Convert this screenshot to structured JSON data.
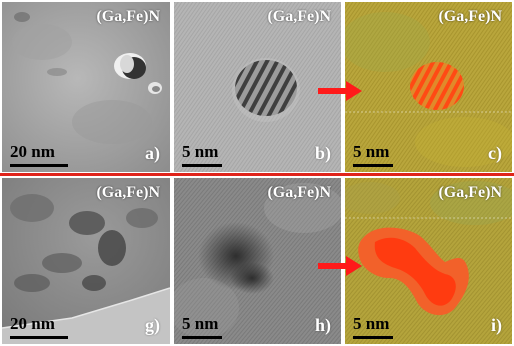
{
  "material_label": "(Ga,Fe)N",
  "panels": {
    "a": {
      "letter": "a)",
      "scale": "20 nm"
    },
    "b": {
      "letter": "b)",
      "scale": "5 nm"
    },
    "c": {
      "letter": "c)",
      "scale": "5 nm"
    },
    "g": {
      "letter": "g)",
      "scale": "20 nm"
    },
    "h": {
      "letter": "h)",
      "scale": "5 nm"
    },
    "i": {
      "letter": "i)",
      "scale": "5 nm"
    }
  },
  "colors": {
    "divider": "#e0241b",
    "arrow": "#ff1a1a",
    "filtered_background": "#b7a43a",
    "precipitate_highlight": "#ff4a14"
  }
}
